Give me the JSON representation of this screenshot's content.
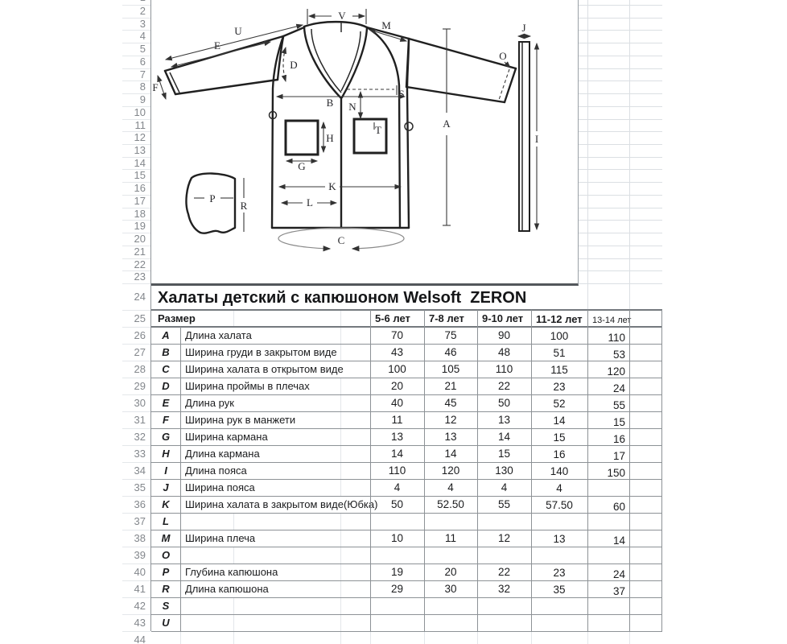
{
  "title": "Халаты детский с капюшоном Welsoft  ZERON",
  "row_numbers": {
    "start": 1,
    "end": 44
  },
  "size_table": {
    "corner_label": "Размер",
    "size_headers": [
      "5-6 лет",
      "7-8 лет",
      "9-10 лет",
      "11-12 лет",
      "13-14 лет"
    ],
    "rows": [
      {
        "letter": "A",
        "label": "Длина халата",
        "values": [
          "70",
          "75",
          "90",
          "100",
          "110"
        ]
      },
      {
        "letter": "B",
        "label": "Ширина груди в закрытом виде",
        "values": [
          "43",
          "46",
          "48",
          "51",
          "53"
        ]
      },
      {
        "letter": "C",
        "label": "Ширина халата в открытом виде",
        "values": [
          "100",
          "105",
          "110",
          "115",
          "120"
        ]
      },
      {
        "letter": "D",
        "label": "Ширина проймы в плечах",
        "values": [
          "20",
          "21",
          "22",
          "23",
          "24"
        ]
      },
      {
        "letter": "E",
        "label": "Длина рук",
        "values": [
          "40",
          "45",
          "50",
          "52",
          "55"
        ]
      },
      {
        "letter": "F",
        "label": "Ширина рук в манжети",
        "values": [
          "11",
          "12",
          "13",
          "14",
          "15"
        ]
      },
      {
        "letter": "G",
        "label": "Ширина кармана",
        "values": [
          "13",
          "13",
          "14",
          "15",
          "16"
        ]
      },
      {
        "letter": "H",
        "label": "Длина кармана",
        "values": [
          "14",
          "14",
          "15",
          "16",
          "17"
        ]
      },
      {
        "letter": "I",
        "label": "Длина пояса",
        "values": [
          "110",
          "120",
          "130",
          "140",
          "150"
        ]
      },
      {
        "letter": "J",
        "label": "Ширина пояса",
        "values": [
          "4",
          "4",
          "4",
          "4",
          ""
        ]
      },
      {
        "letter": "K",
        "label": "Ширина халата в закрытом виде(Юбка)",
        "values": [
          "50",
          "52.50",
          "55",
          "57.50",
          "60"
        ]
      },
      {
        "letter": "L",
        "label": "",
        "values": [
          "",
          "",
          "",
          "",
          ""
        ]
      },
      {
        "letter": "M",
        "label": "Ширина плеча",
        "values": [
          "10",
          "11",
          "12",
          "13",
          "14"
        ]
      },
      {
        "letter": "O",
        "label": "",
        "values": [
          "",
          "",
          "",
          "",
          ""
        ]
      },
      {
        "letter": "P",
        "label": "Глубина капюшона",
        "values": [
          "19",
          "20",
          "22",
          "23",
          "24"
        ]
      },
      {
        "letter": "R",
        "label": "Длина капюшона",
        "values": [
          "29",
          "30",
          "32",
          "35",
          "37"
        ]
      },
      {
        "letter": "S",
        "label": "",
        "values": [
          "",
          "",
          "",
          "",
          ""
        ]
      },
      {
        "letter": "U",
        "label": "",
        "values": [
          "",
          "",
          "",
          "",
          ""
        ]
      }
    ]
  },
  "diagram": {
    "labels": {
      "V": "V",
      "M": "M",
      "U": "U",
      "E": "E",
      "D": "D",
      "F": "F",
      "B": "B",
      "N": "N",
      "S": "S",
      "T": "T",
      "H": "H",
      "G": "G",
      "K": "K",
      "L": "L",
      "C": "C",
      "A": "A",
      "O": "O",
      "J": "J",
      "I": "I",
      "P": "P",
      "R": "R"
    }
  }
}
